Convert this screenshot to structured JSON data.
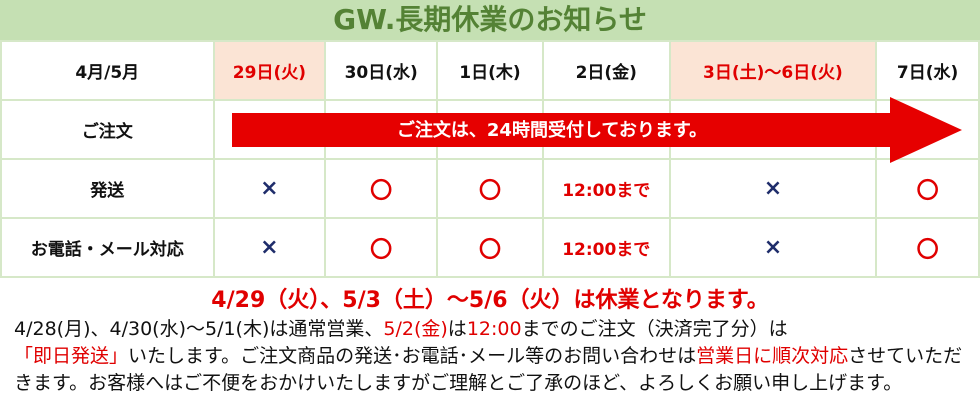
{
  "title": "GW.長期休業のお知らせ",
  "table": {
    "header": [
      "4月/5月",
      "29日(火)",
      "30日(水)",
      "1日(木)",
      "2日(金)",
      "3日(土)～6日(火)",
      "7日(水)"
    ],
    "rows": [
      {
        "label": "ご注文",
        "arrow_text": "ご注文は、24時間受付しております。"
      },
      {
        "label": "発送",
        "cells": [
          "×",
          "〇",
          "〇",
          "12:00まで",
          "×",
          "〇"
        ]
      },
      {
        "label": "お電話・メール対応",
        "cells": [
          "×",
          "〇",
          "〇",
          "12:00まで",
          "×",
          "〇"
        ]
      }
    ]
  },
  "colors": {
    "title_bg": "#c5e0b3",
    "title_text": "#548235",
    "holiday_bg": "#fbe4d5",
    "accent_red": "#e00000",
    "cross": "#1f2d6b"
  },
  "closed_notice": "4/29（火）、5/3（土）～5/6（火）は休業となります。",
  "paragraph": {
    "p1": "4/28(月)、4/30(水)～5/1(木)は通常営業、",
    "p2": "5/2(金)",
    "p3": "は",
    "p4": "12:00",
    "p5": "までのご注文（決済完了分）は",
    "p6": "「即日発送」",
    "p7": "いたします。ご注文商品の発送･お電話･メール等のお問い合わせは",
    "p8": "営業日に順次対応",
    "p9": "させていただきます。お客様へはご不便をおかけいたしますがご理解とご了承のほど、よろしくお願い申し上げます。"
  }
}
